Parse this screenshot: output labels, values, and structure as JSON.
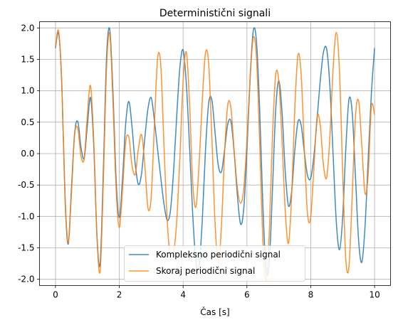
{
  "chart_data": {
    "type": "line",
    "title": "Deterministični signali",
    "xlabel": "Čas [s]",
    "ylabel": "",
    "xlim": [
      -0.5,
      10.5
    ],
    "ylim": [
      -2.1,
      2.1
    ],
    "xticks": [
      0,
      2,
      4,
      6,
      8,
      10
    ],
    "yticks": [
      -2.0,
      -1.5,
      -1.0,
      -0.5,
      0.0,
      0.5,
      1.0,
      1.5,
      2.0
    ],
    "grid": true,
    "legend_position": "bottom-center",
    "series": [
      {
        "name": "Kompleksno periodični signal",
        "color": "#1f77b4",
        "x": [
          0.0,
          0.1,
          0.2,
          0.3,
          0.4,
          0.5,
          0.6,
          0.7,
          0.8,
          0.9,
          1.0,
          1.1,
          1.2,
          1.3,
          1.4,
          1.5,
          1.6,
          1.7,
          1.8,
          1.9,
          2.0,
          2.1,
          2.2,
          2.3,
          2.4,
          2.5,
          2.6,
          2.7,
          2.8,
          2.9,
          3.0,
          3.1,
          3.2,
          3.3,
          3.4,
          3.5,
          3.6,
          3.7,
          3.8,
          3.9,
          4.0,
          4.1,
          4.2,
          4.3,
          4.4,
          4.5,
          4.6,
          4.7,
          4.8,
          4.9,
          5.0,
          5.1,
          5.2,
          5.3,
          5.4,
          5.5,
          5.6,
          5.7,
          5.8,
          5.9,
          6.0,
          6.1,
          6.2,
          6.3,
          6.4,
          6.5,
          6.6,
          6.7,
          6.8,
          6.9,
          7.0,
          7.1,
          7.2,
          7.3,
          7.4,
          7.5,
          7.6,
          7.7,
          7.8,
          7.9,
          8.0,
          8.1,
          8.2,
          8.3,
          8.4,
          8.5,
          8.6,
          8.7,
          8.8,
          8.9,
          9.0,
          9.1,
          9.2,
          9.3,
          9.4,
          9.5,
          9.6,
          9.7,
          9.8,
          9.9,
          10.0
        ],
        "y": [
          1.68,
          1.91,
          1.09,
          -0.72,
          -1.44,
          -0.56,
          0.32,
          0.51,
          0.1,
          -0.07,
          0.45,
          0.89,
          0.12,
          -1.31,
          -1.75,
          -0.27,
          1.53,
          1.98,
          1.0,
          -0.4,
          -1.02,
          -0.41,
          0.47,
          0.83,
          0.42,
          -0.17,
          -0.49,
          -0.31,
          0.25,
          0.72,
          0.89,
          0.53,
          0.07,
          -0.38,
          -0.8,
          -1.06,
          -0.92,
          -0.29,
          0.6,
          1.38,
          1.65,
          1.12,
          0.13,
          -0.96,
          -1.71,
          -1.79,
          -1.07,
          0.04,
          0.8,
          0.86,
          0.34,
          -0.18,
          -0.29,
          0.06,
          0.47,
          0.51,
          0.02,
          -0.66,
          -1.12,
          -0.88,
          0.05,
          1.2,
          1.96,
          1.78,
          0.69,
          -0.83,
          -1.85,
          -1.73,
          -0.58,
          0.68,
          1.16,
          0.66,
          -0.28,
          -0.83,
          -0.61,
          0.05,
          0.51,
          0.45,
          0.02,
          -0.35,
          -0.39,
          -0.03,
          0.56,
          1.17,
          1.62,
          1.66,
          1.07,
          -0.01,
          -1.08,
          -1.53,
          -1.02,
          0.09,
          0.87,
          0.65,
          -0.35,
          -1.38,
          -1.73,
          -1.17,
          -0.09,
          0.96,
          1.68
        ]
      },
      {
        "name": "Skoraj periodični signal",
        "color": "#ff7f0e",
        "x": [
          0.0,
          0.1,
          0.2,
          0.3,
          0.4,
          0.5,
          0.6,
          0.7,
          0.8,
          0.9,
          1.0,
          1.1,
          1.2,
          1.3,
          1.4,
          1.5,
          1.6,
          1.7,
          1.8,
          1.9,
          2.0,
          2.1,
          2.2,
          2.3,
          2.4,
          2.5,
          2.6,
          2.7,
          2.8,
          2.9,
          3.0,
          3.1,
          3.2,
          3.3,
          3.4,
          3.5,
          3.6,
          3.7,
          3.8,
          3.9,
          4.0,
          4.1,
          4.2,
          4.3,
          4.4,
          4.5,
          4.6,
          4.7,
          4.8,
          4.9,
          5.0,
          5.1,
          5.2,
          5.3,
          5.4,
          5.5,
          5.6,
          5.7,
          5.8,
          5.9,
          6.0,
          6.1,
          6.2,
          6.3,
          6.4,
          6.5,
          6.6,
          6.7,
          6.8,
          6.9,
          7.0,
          7.1,
          7.2,
          7.3,
          7.4,
          7.5,
          7.6,
          7.7,
          7.8,
          7.9,
          8.0,
          8.1,
          8.2,
          8.3,
          8.4,
          8.5,
          8.6,
          8.7,
          8.8,
          8.9,
          9.0,
          9.1,
          9.2,
          9.3,
          9.4,
          9.5,
          9.6,
          9.7,
          9.8,
          9.9,
          10.0
        ],
        "y": [
          1.7,
          1.95,
          1.07,
          -0.66,
          -1.42,
          -0.64,
          0.3,
          0.4,
          -0.04,
          -0.08,
          0.62,
          1.08,
          0.2,
          -1.32,
          -1.87,
          -0.45,
          1.35,
          1.91,
          0.84,
          -0.56,
          -1.18,
          -0.58,
          0.18,
          0.26,
          -0.19,
          -0.33,
          0.08,
          0.3,
          -0.18,
          -0.87,
          -0.69,
          0.45,
          1.51,
          1.41,
          0.14,
          -1.04,
          -1.65,
          -1.59,
          -1.07,
          -0.05,
          1.14,
          1.62,
          0.82,
          -0.45,
          -0.85,
          -0.18,
          0.83,
          1.6,
          1.44,
          0.27,
          -1.09,
          -1.73,
          -1.17,
          0.02,
          0.78,
          0.72,
          0.05,
          -0.54,
          -0.79,
          -0.56,
          0.22,
          1.21,
          1.85,
          1.52,
          0.16,
          -1.38,
          -2.02,
          -1.26,
          0.26,
          1.25,
          1.15,
          0.21,
          -0.9,
          -1.43,
          -0.69,
          0.72,
          1.57,
          1.26,
          0.06,
          -0.97,
          -1.01,
          -0.22,
          0.59,
          0.44,
          -0.19,
          -0.38,
          0.27,
          1.34,
          1.93,
          1.32,
          -0.29,
          -1.69,
          -1.79,
          -0.66,
          0.58,
          0.84,
          0.13,
          -0.63,
          -0.33,
          0.75,
          0.62
        ]
      }
    ]
  }
}
